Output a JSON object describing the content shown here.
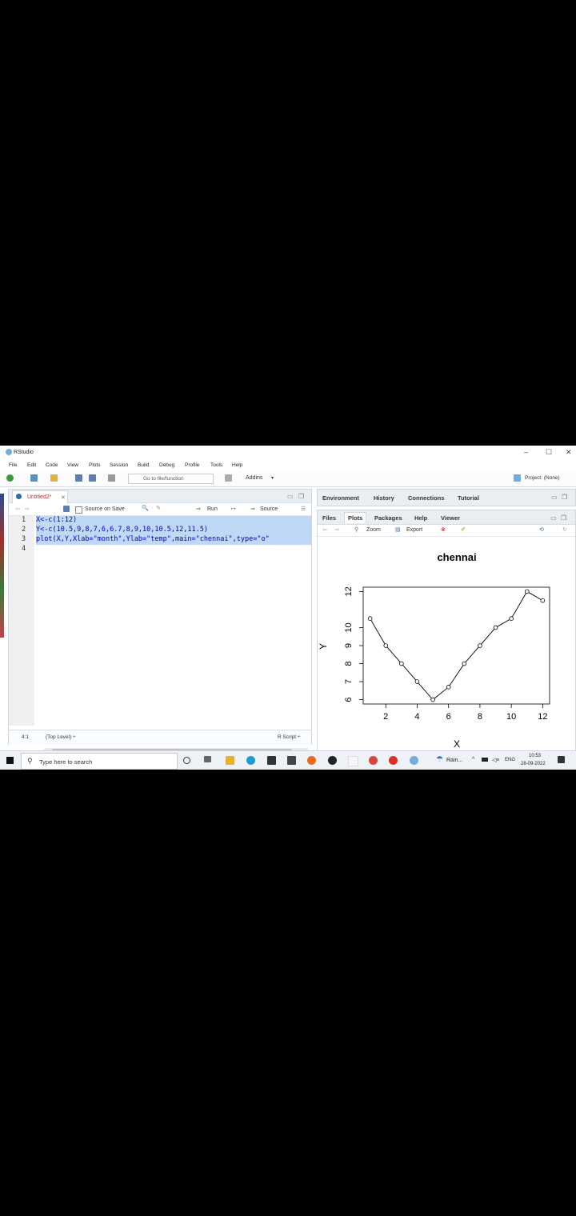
{
  "window": {
    "title": "RStudio"
  },
  "menu": [
    "File",
    "Edit",
    "Code",
    "View",
    "Plots",
    "Session",
    "Build",
    "Debug",
    "Profile",
    "Tools",
    "Help"
  ],
  "toolbar": {
    "goto_placeholder": "Go to file/function",
    "addins": "Addins",
    "project": "Project: (None)"
  },
  "source": {
    "tab_label": "Untitled2*",
    "source_on_save": "Source on Save",
    "run": "Run",
    "source_btn": "Source",
    "lines": [
      "X<-c(1:12)",
      "Y<-c(10.5,9,8,7,6,6.7,8,9,10,10.5,12,11.5)",
      "plot(X,Y,Xlab=\"month\",Ylab=\"temp\",main=\"chennai\",type=\"o\"",
      ""
    ],
    "line_numbers": [
      "1",
      "2",
      "3",
      "4"
    ],
    "status_pos": "4:1",
    "status_scope": "(Top Level) ÷",
    "status_type": "R Script ÷"
  },
  "env_tabs": [
    "Environment",
    "History",
    "Connections",
    "Tutorial"
  ],
  "plot_tabs": [
    "Files",
    "Plots",
    "Packages",
    "Help",
    "Viewer"
  ],
  "plot_tools": {
    "zoom": "Zoom",
    "export": "Export"
  },
  "taskbar": {
    "search": "Type here to search",
    "weather": "Rain...",
    "lang": "ENG",
    "time": "10:53",
    "date": "28-09-2022"
  },
  "chart_data": {
    "type": "line",
    "title": "chennai",
    "xlabel": "X",
    "ylabel": "Y",
    "x": [
      1,
      2,
      3,
      4,
      5,
      6,
      7,
      8,
      9,
      10,
      11,
      12
    ],
    "values": [
      10.5,
      9,
      8,
      7,
      6,
      6.7,
      8,
      9,
      10,
      10.5,
      12,
      11.5
    ],
    "xticks": [
      2,
      4,
      6,
      8,
      10,
      12
    ],
    "yticks": [
      6,
      7,
      8,
      9,
      10,
      12
    ],
    "xlim": [
      0.56,
      12.44
    ],
    "ylim": [
      5.76,
      12.24
    ],
    "markers": "open-circle"
  }
}
